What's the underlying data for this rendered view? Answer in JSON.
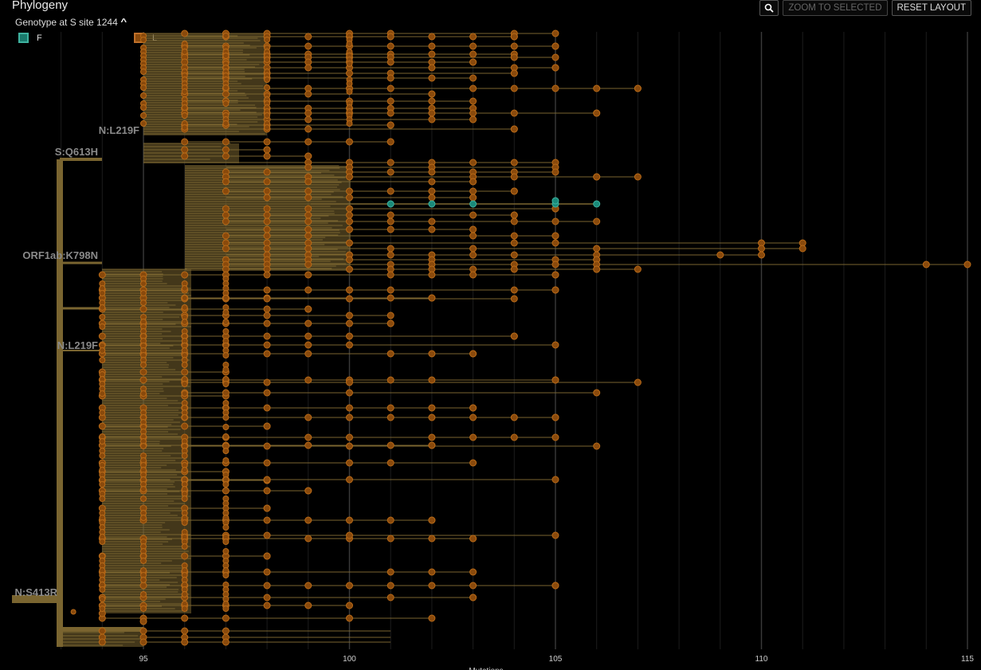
{
  "panel": {
    "title": "Phylogeny"
  },
  "genotype": {
    "label": "Genotype at S site 1244",
    "collapse_icon": "chevron-up-icon"
  },
  "legend": [
    {
      "label": "F",
      "color": "#1a7a6c",
      "border": "#3fb3a0"
    },
    {
      "label": "L",
      "color": "#8a4a0c",
      "border": "#c0702a"
    }
  ],
  "toolbar": {
    "search_icon": "magnifier-icon",
    "zoom_label": "ZOOM TO SELECTED",
    "reset_label": "RESET LAYOUT"
  },
  "colors": {
    "branch": "#7a6530",
    "node": "#8a4a0c",
    "node_edge": "#b86a18",
    "selected": "#1a8a7a"
  },
  "mutation_labels": [
    "N:L219F",
    "S:Q613H",
    "ORF1ab:K798N",
    "N:L219F",
    "N:S413R"
  ],
  "axis": {
    "xlabel": "Mutations",
    "ticks": [
      "95",
      "100",
      "105",
      "110",
      "115"
    ],
    "min": 93,
    "max": 115
  }
}
